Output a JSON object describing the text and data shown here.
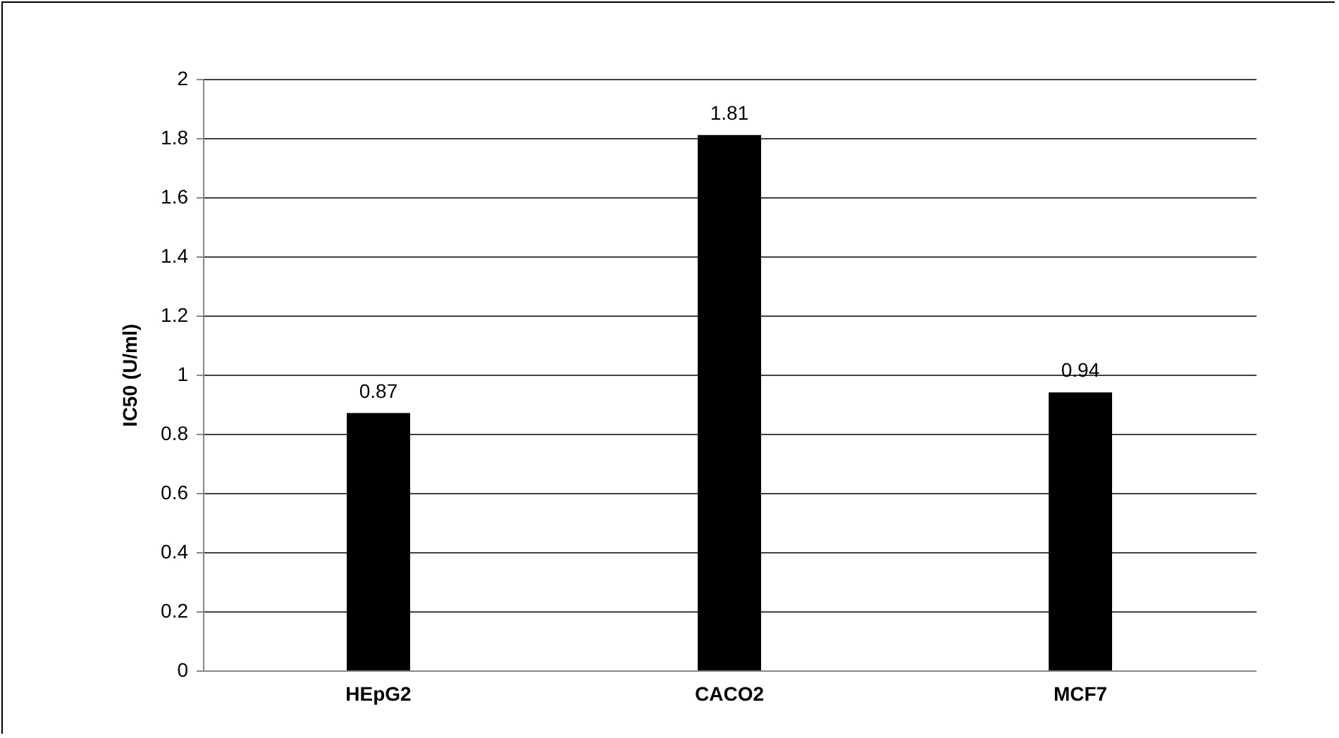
{
  "chart_data": {
    "type": "bar",
    "ylabel": "IC50 (U/ml)",
    "categories": [
      "HEpG2",
      "CACO2",
      "MCF7"
    ],
    "values": [
      0.87,
      1.81,
      0.94
    ],
    "color": "#000000",
    "ylim": [
      0,
      2
    ],
    "yticks": [
      0,
      0.2,
      0.4,
      0.6,
      0.8,
      1,
      1.2,
      1.4,
      1.6,
      1.8,
      2
    ],
    "grid": "y",
    "data_labels": true
  }
}
